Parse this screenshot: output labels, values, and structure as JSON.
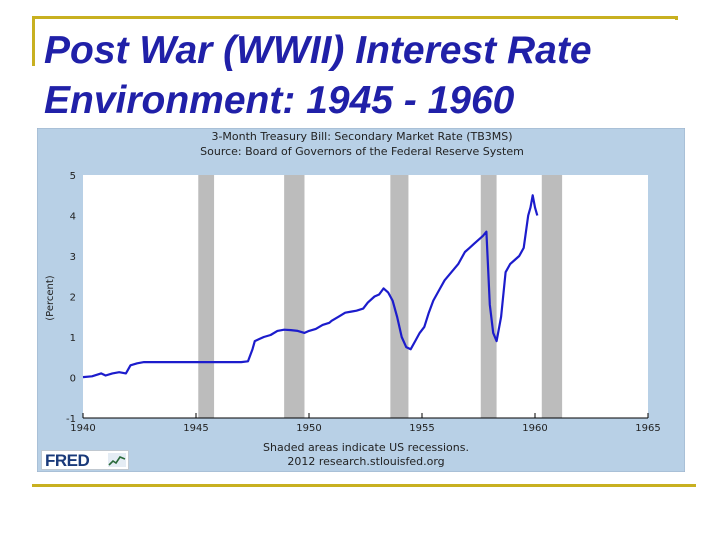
{
  "slide": {
    "title_line1": "Post War (WWII) Interest Rate",
    "title_line2": "Environment: 1945 - 1960"
  },
  "logo": {
    "text": "FRED",
    "icon": "chart-line-icon"
  },
  "colors": {
    "title": "#2020a8",
    "chart_bg": "#b8d0e6",
    "line": "#1c1ccc",
    "recession": "#bcbcbc",
    "frame": "#c8b020"
  },
  "chart_data": {
    "type": "line",
    "title": "3-Month Treasury Bill: Secondary Market Rate (TB3MS)",
    "subtitle": "Source: Board of Governors of the Federal Reserve System",
    "xlabel": "",
    "ylabel": "(Percent)",
    "footnote_line1": "Shaded areas indicate US recessions.",
    "footnote_line2": "2012 research.stlouisfed.org",
    "xlim": [
      1940,
      1965
    ],
    "ylim": [
      -1,
      5
    ],
    "x_ticks": [
      "1940",
      "1945",
      "1950",
      "1955",
      "1960",
      "1965"
    ],
    "y_ticks": [
      "-1",
      "0",
      "1",
      "2",
      "3",
      "4",
      "5"
    ],
    "grid": false,
    "recessions": [
      [
        1945.1,
        1945.8
      ],
      [
        1948.9,
        1949.8
      ],
      [
        1953.6,
        1954.4
      ],
      [
        1957.6,
        1958.3
      ],
      [
        1960.3,
        1961.2
      ]
    ],
    "series": [
      {
        "x": [
          1940.0,
          1940.4,
          1940.8,
          1941.0,
          1941.3,
          1941.6,
          1941.9,
          1942.1,
          1942.4,
          1942.7,
          1942.9,
          1943.1,
          1943.4,
          1943.7,
          1944.0,
          1944.5,
          1945.0,
          1945.5,
          1946.0,
          1946.5,
          1947.0,
          1947.3,
          1947.5,
          1947.6,
          1947.8,
          1948.0,
          1948.3,
          1948.6,
          1948.9,
          1949.2,
          1949.5,
          1949.8,
          1950.0,
          1950.3,
          1950.6,
          1950.9,
          1951.0,
          1951.3,
          1951.6,
          1951.9,
          1952.1,
          1952.4,
          1952.6,
          1952.9,
          1953.1,
          1953.3,
          1953.5,
          1953.7,
          1953.9,
          1954.1,
          1954.3,
          1954.5,
          1954.7,
          1954.9,
          1955.1,
          1955.3,
          1955.5,
          1955.8,
          1956.0,
          1956.3,
          1956.6,
          1956.9,
          1957.1,
          1957.3,
          1957.5,
          1957.7,
          1957.85,
          1958.0,
          1958.15,
          1958.3,
          1958.5,
          1958.7,
          1958.9,
          1959.1,
          1959.3,
          1959.5,
          1959.7,
          1959.8,
          1959.9,
          1960.0,
          1960.1
        ],
        "y": [
          0.01,
          0.03,
          0.1,
          0.05,
          0.1,
          0.13,
          0.1,
          0.3,
          0.35,
          0.38,
          0.38,
          0.38,
          0.38,
          0.38,
          0.38,
          0.38,
          0.38,
          0.38,
          0.38,
          0.38,
          0.38,
          0.4,
          0.7,
          0.9,
          0.95,
          1.0,
          1.05,
          1.15,
          1.18,
          1.17,
          1.15,
          1.1,
          1.15,
          1.2,
          1.3,
          1.35,
          1.4,
          1.5,
          1.6,
          1.63,
          1.65,
          1.7,
          1.85,
          2.0,
          2.05,
          2.2,
          2.1,
          1.9,
          1.5,
          1.0,
          0.75,
          0.7,
          0.9,
          1.1,
          1.25,
          1.6,
          1.9,
          2.2,
          2.4,
          2.6,
          2.8,
          3.1,
          3.2,
          3.3,
          3.4,
          3.5,
          3.6,
          1.8,
          1.1,
          0.9,
          1.5,
          2.6,
          2.8,
          2.9,
          3.0,
          3.2,
          4.0,
          4.2,
          4.5,
          4.2,
          4.0
        ]
      }
    ]
  }
}
